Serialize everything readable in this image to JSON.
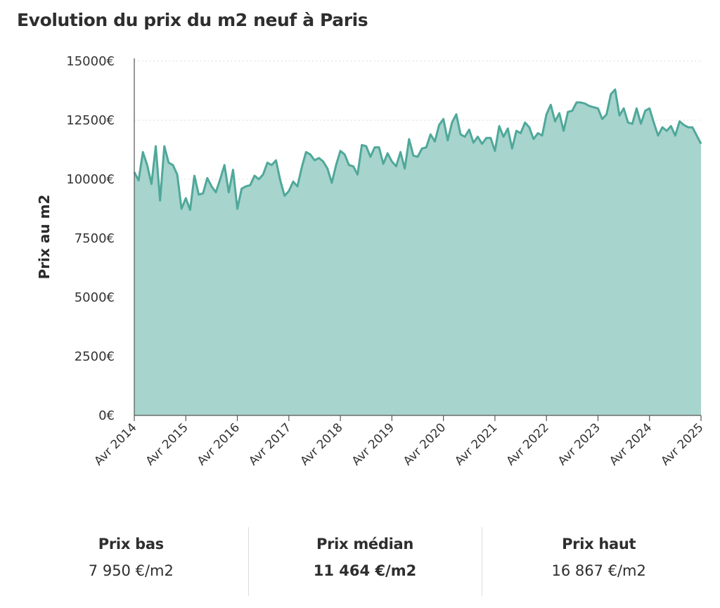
{
  "title": "Evolution du prix du m2 neuf à Paris",
  "colors": {
    "line": "#4fa89a",
    "fill": "#a7d4cd",
    "grid": "#d0d0d0",
    "axis": "#555555"
  },
  "chart_data": {
    "type": "area",
    "title": "Evolution du prix du m2 neuf à Paris",
    "xlabel": "",
    "ylabel": "Prix au m2",
    "ylim": [
      0,
      15000
    ],
    "y_ticks": [
      0,
      2500,
      5000,
      7500,
      10000,
      12500,
      15000
    ],
    "y_tick_labels": [
      "0€",
      "2500€",
      "5000€",
      "7500€",
      "10000€",
      "12500€",
      "15000€"
    ],
    "x_tick_labels": [
      "Avr 2014",
      "Avr 2015",
      "Avr 2016",
      "Avr 2017",
      "Avr 2018",
      "Avr 2019",
      "Avr 2020",
      "Avr 2021",
      "Avr 2022",
      "Avr 2023",
      "Avr 2024",
      "Avr 2025"
    ],
    "grid": "horizontal dotted",
    "x_start": "2014-04",
    "x_step": "1 month",
    "values": [
      10300,
      9950,
      11150,
      10600,
      9800,
      11400,
      9100,
      11400,
      10700,
      10600,
      10200,
      8750,
      9200,
      8700,
      10150,
      9350,
      9400,
      10050,
      9700,
      9450,
      10000,
      10600,
      9450,
      10400,
      8750,
      9600,
      9700,
      9750,
      10150,
      10000,
      10200,
      10700,
      10600,
      10800,
      9950,
      9300,
      9500,
      9900,
      9700,
      10500,
      11150,
      11050,
      10800,
      10900,
      10750,
      10450,
      9850,
      10600,
      11200,
      11050,
      10600,
      10550,
      10200,
      11450,
      11400,
      10950,
      11350,
      11350,
      10650,
      11100,
      10750,
      10550,
      11150,
      10450,
      11700,
      11000,
      10950,
      11300,
      11350,
      11900,
      11600,
      12300,
      12550,
      11650,
      12400,
      12750,
      11900,
      11800,
      12100,
      11550,
      11800,
      11500,
      11750,
      11750,
      11200,
      12250,
      11800,
      12150,
      11300,
      12050,
      11950,
      12400,
      12200,
      11700,
      11950,
      11850,
      12750,
      13150,
      12450,
      12800,
      12050,
      12850,
      12900,
      13250,
      13250,
      13200,
      13100,
      13050,
      13000,
      12550,
      12750,
      13600,
      13800,
      12700,
      13000,
      12400,
      12350,
      13000,
      12350,
      12900,
      13000,
      12400,
      11850,
      12200,
      12050,
      12250,
      11850,
      12450,
      12300,
      12200,
      12200,
      11850,
      11500
    ]
  },
  "stats": [
    {
      "label": "Prix bas",
      "value": "7 950 €/m2"
    },
    {
      "label": "Prix médian",
      "value": "11 464 €/m2"
    },
    {
      "label": "Prix haut",
      "value": "16 867 €/m2"
    }
  ]
}
